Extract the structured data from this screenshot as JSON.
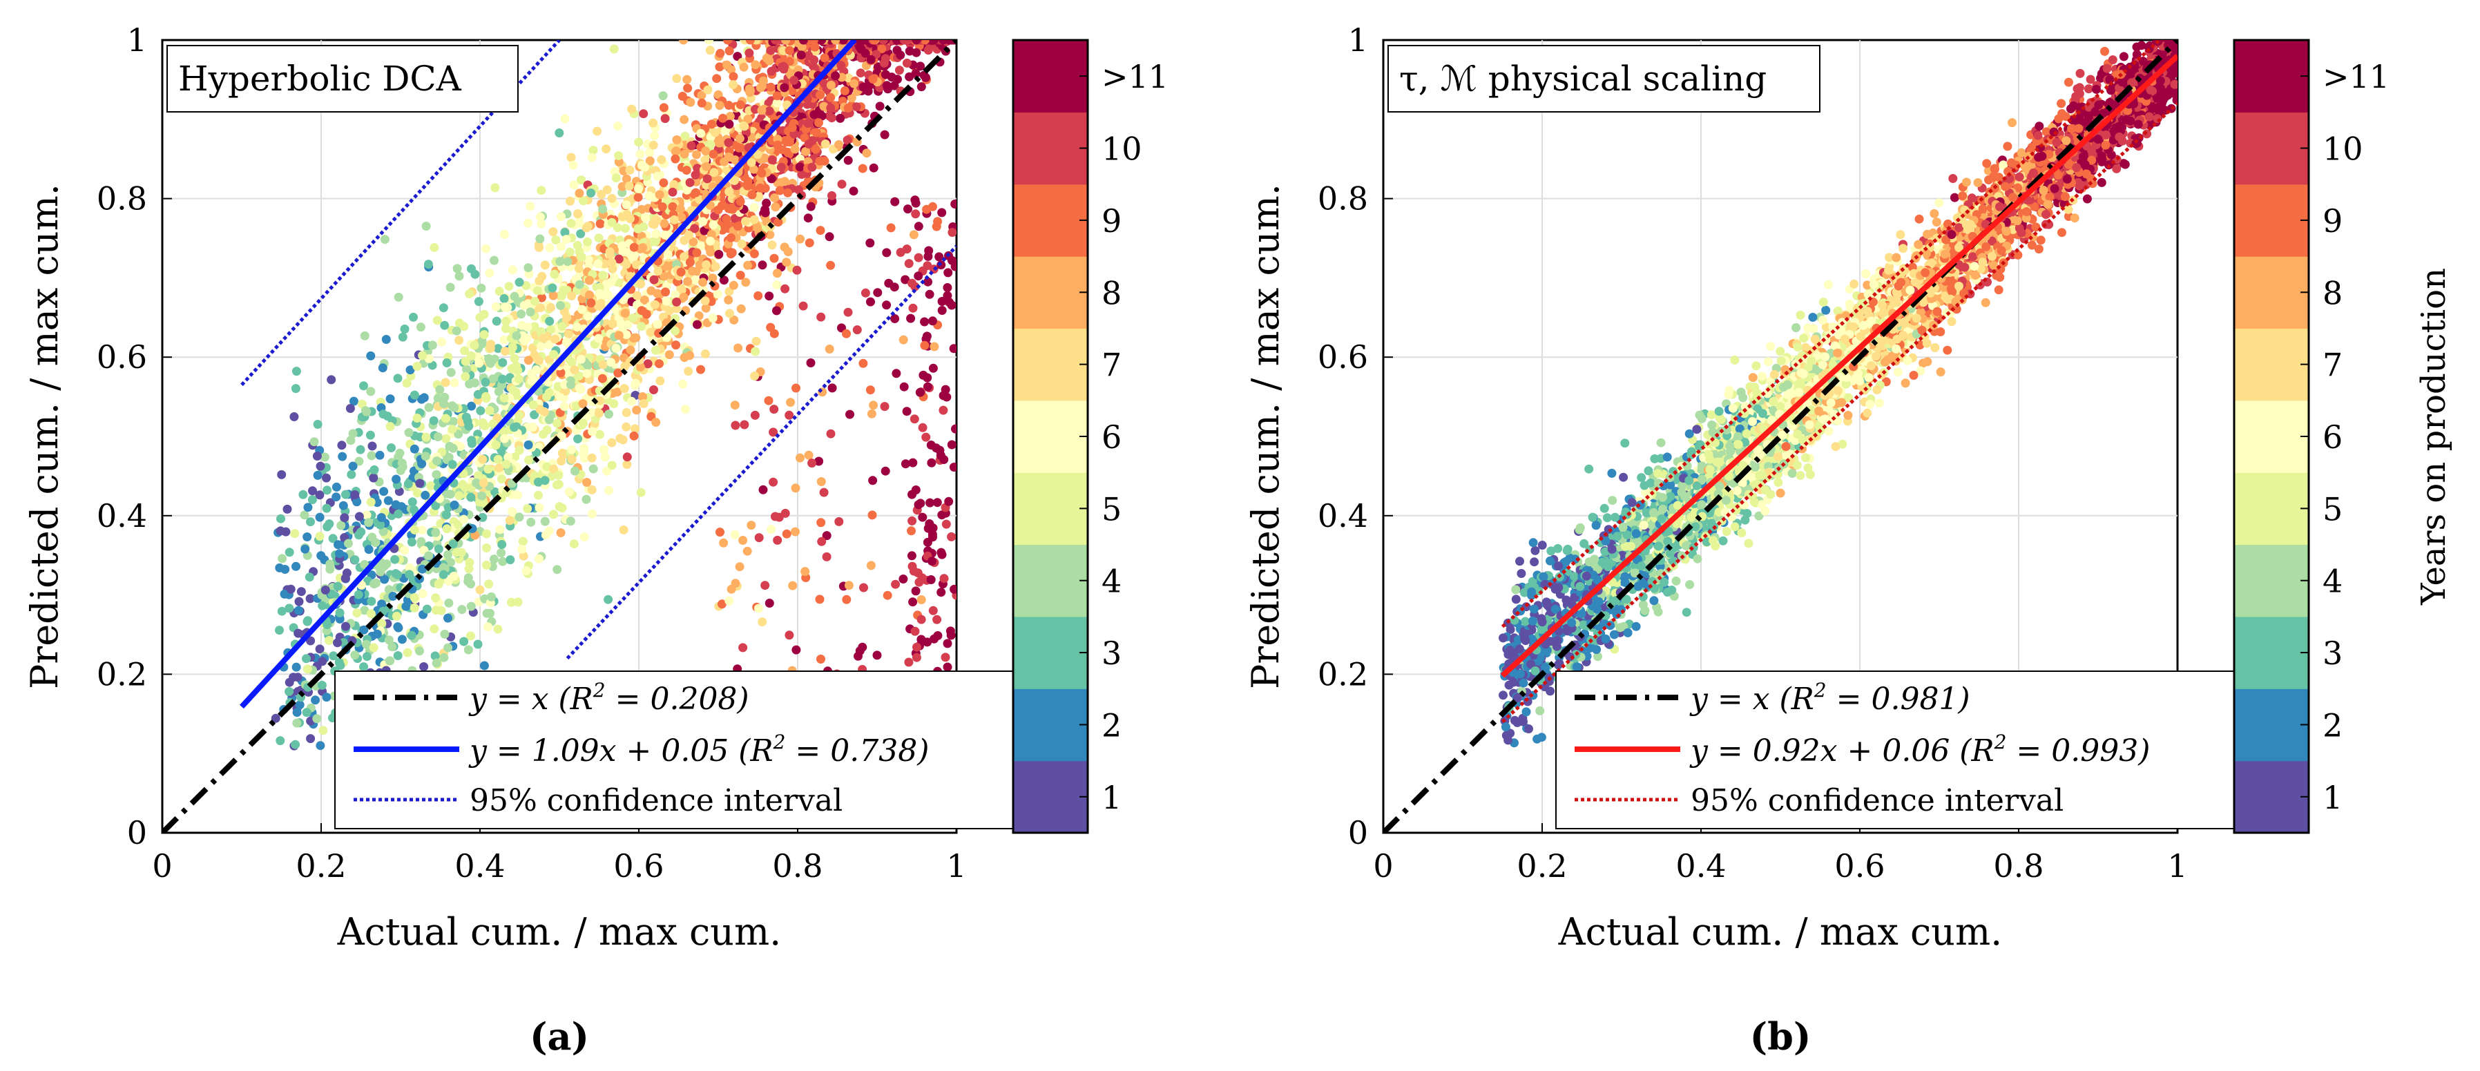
{
  "colors": {
    "identity": "#000000",
    "fit_a": "#0a1aff",
    "ci_a": "#1a1acf",
    "fit_b": "#ff1a1a",
    "ci_b": "#d01010",
    "grid": "#dddddd",
    "palette": [
      "#5e4fa2",
      "#3288bd",
      "#66c2a5",
      "#abdda4",
      "#e6f598",
      "#ffffbf",
      "#fee08b",
      "#fdae61",
      "#f46d43",
      "#d53e4f",
      "#9e0142"
    ]
  },
  "colorbar": {
    "tick_labels": [
      "1",
      "2",
      "3",
      "4",
      "5",
      "6",
      "7",
      "8",
      "9",
      "10",
      ">11"
    ],
    "label": "Years on production"
  },
  "chart_data": [
    {
      "type": "scatter",
      "panel_label": "(a)",
      "title": "Hyperbolic DCA",
      "xlabel": "Actual cum. / max cum.",
      "ylabel": "Predicted cum. / max cum.",
      "xlim": [
        0,
        1
      ],
      "ylim": [
        0,
        1
      ],
      "xticks": [
        "0",
        "0.2",
        "0.4",
        "0.6",
        "0.8",
        "1"
      ],
      "yticks": [
        "0",
        "0.2",
        "0.4",
        "0.6",
        "0.8",
        "1"
      ],
      "grid": true,
      "color_by": "Years on production",
      "series": [
        {
          "name": "y = x (R² = 0.208)",
          "kind": "identity",
          "x": [
            0,
            1
          ],
          "y": [
            0,
            1
          ]
        },
        {
          "name": "y = 1.09x + 0.05 (R² = 0.738)",
          "kind": "fit",
          "slope": 1.09,
          "intercept": 0.05,
          "x_range": [
            0.1,
            0.872
          ]
        },
        {
          "name": "95% confidence interval",
          "kind": "ci",
          "upper": {
            "x": [
              0.1,
              0.5
            ],
            "y": [
              0.565,
              1.0
            ]
          },
          "lower": {
            "x": [
              0.51,
              1.0
            ],
            "y": [
              0.22,
              0.74
            ]
          }
        }
      ],
      "legend": {
        "location": "bottom-right",
        "entries": [
          {
            "pre": "y = x (R",
            "sup": "2",
            "post": " = 0.208)"
          },
          {
            "pre": "y = 1.09x + 0.05 (R",
            "sup": "2",
            "post": " = 0.738)"
          },
          {
            "pre": "95% confidence interval",
            "sup": "",
            "post": ""
          }
        ]
      }
    },
    {
      "type": "scatter",
      "panel_label": "(b)",
      "title": "τ, ℳ physical scaling",
      "xlabel": "Actual cum. / max cum.",
      "ylabel": "Predicted cum. / max cum.",
      "xlim": [
        0,
        1
      ],
      "ylim": [
        0,
        1
      ],
      "xticks": [
        "0",
        "0.2",
        "0.4",
        "0.6",
        "0.8",
        "1"
      ],
      "yticks": [
        "0",
        "0.2",
        "0.4",
        "0.6",
        "0.8",
        "1"
      ],
      "grid": true,
      "color_by": "Years on production",
      "series": [
        {
          "name": "y = x (R² = 0.981)",
          "kind": "identity",
          "x": [
            0,
            1
          ],
          "y": [
            0,
            1
          ]
        },
        {
          "name": "y = 0.92x + 0.06 (R² = 0.993)",
          "kind": "fit",
          "slope": 0.92,
          "intercept": 0.06,
          "x_range": [
            0.15,
            1.0
          ]
        },
        {
          "name": "95% confidence interval",
          "kind": "ci",
          "upper": {
            "x": [
              0.15,
              1.0
            ],
            "y": [
              0.26,
              1.02
            ]
          },
          "lower": {
            "x": [
              0.15,
              1.0
            ],
            "y": [
              0.14,
              0.92
            ]
          }
        }
      ],
      "legend": {
        "location": "bottom-right",
        "entries": [
          {
            "pre": "y = x (R",
            "sup": "2",
            "post": " = 0.981)"
          },
          {
            "pre": "y = 0.92x + 0.06 (R",
            "sup": "2",
            "post": " = 0.993)"
          },
          {
            "pre": "95% confidence interval",
            "sup": "",
            "post": ""
          }
        ]
      }
    }
  ]
}
